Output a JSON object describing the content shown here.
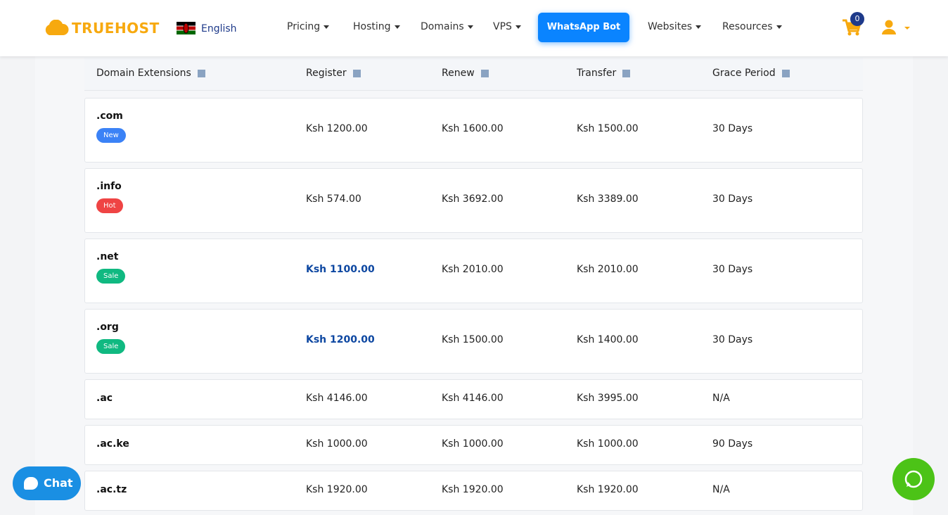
{
  "header": {
    "logo": "TRUEHOST",
    "language": "English",
    "nav": [
      "Pricing",
      "Hosting",
      "Domains",
      "VPS",
      "WhatsApp Bot",
      "Websites",
      "Resources"
    ],
    "cart_count": 0
  },
  "table": {
    "columns": [
      "Domain Extensions",
      "Register",
      "Renew",
      "Transfer",
      "Grace Period"
    ],
    "rows": [
      {
        "extension": ".com",
        "badge": "New",
        "badge_color": "#3b82f6",
        "register": "Ksh 1200.00",
        "register_emphasis": false,
        "renew": "Ksh 1600.00",
        "transfer": "Ksh 1500.00",
        "grace": "30 Days"
      },
      {
        "extension": ".info",
        "badge": "Hot",
        "badge_color": "#ef4444",
        "register": "Ksh 574.00",
        "register_emphasis": false,
        "renew": "Ksh 3692.00",
        "transfer": "Ksh 3389.00",
        "grace": "30 Days"
      },
      {
        "extension": ".net",
        "badge": "Sale",
        "badge_color": "#10b981",
        "register": "Ksh 1100.00",
        "register_emphasis": true,
        "renew": "Ksh 2010.00",
        "transfer": "Ksh 2010.00",
        "grace": "30 Days"
      },
      {
        "extension": ".org",
        "badge": "Sale",
        "badge_color": "#10b981",
        "register": "Ksh 1200.00",
        "register_emphasis": true,
        "renew": "Ksh 1500.00",
        "transfer": "Ksh 1400.00",
        "grace": "30 Days"
      },
      {
        "extension": ".ac",
        "register": "Ksh 4146.00",
        "register_emphasis": false,
        "renew": "Ksh 4146.00",
        "transfer": "Ksh 3995.00",
        "grace": "N/A"
      },
      {
        "extension": ".ac.ke",
        "register": "Ksh 1000.00",
        "register_emphasis": false,
        "renew": "Ksh 1000.00",
        "transfer": "Ksh 1000.00",
        "grace": "90 Days"
      },
      {
        "extension": ".ac.tz",
        "register": "Ksh 1920.00",
        "register_emphasis": false,
        "renew": "Ksh 1920.00",
        "transfer": "Ksh 1920.00",
        "grace": "N/A"
      }
    ]
  },
  "chat": "Chat"
}
